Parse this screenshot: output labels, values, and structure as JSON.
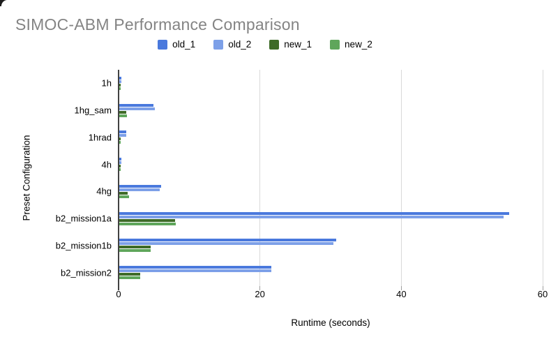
{
  "title": "SIMOC-ABM Performance Comparison",
  "axis": {
    "xlabel": "Runtime (seconds)",
    "ylabel": "Preset Configuration"
  },
  "colors": {
    "old_1": "#4a79dd",
    "old_2": "#7da0e8",
    "new_1": "#3e6b28",
    "new_2": "#5fa65b",
    "title_text": "#848484",
    "axis_line": "#424242",
    "gridline": "#d9d9d9",
    "tick": "#9e9e9e"
  },
  "chart_data": {
    "type": "bar",
    "orientation": "horizontal",
    "title": "SIMOC-ABM Performance Comparison",
    "xlabel": "Runtime (seconds)",
    "ylabel": "Preset Configuration",
    "xlim": [
      0,
      60
    ],
    "xticks": [
      0,
      20,
      40,
      60
    ],
    "grid": true,
    "legend_position": "top",
    "categories": [
      "1h",
      "1hg_sam",
      "1hrad",
      "4h",
      "4hg",
      "b2_mission1a",
      "b2_mission1b",
      "b2_mission2"
    ],
    "series": [
      {
        "name": "old_1",
        "color": "#4a79dd",
        "values": [
          0.3,
          4.8,
          1.0,
          0.3,
          5.9,
          55.2,
          30.7,
          21.5
        ]
      },
      {
        "name": "old_2",
        "color": "#7da0e8",
        "values": [
          0.3,
          5.0,
          1.0,
          0.3,
          5.7,
          54.4,
          30.3,
          21.5
        ]
      },
      {
        "name": "new_1",
        "color": "#3e6b28",
        "values": [
          0.1,
          1.0,
          0.2,
          0.1,
          1.2,
          7.9,
          4.4,
          3.0
        ]
      },
      {
        "name": "new_2",
        "color": "#5fa65b",
        "values": [
          0.1,
          1.1,
          0.2,
          0.1,
          1.4,
          8.0,
          4.4,
          3.0
        ]
      }
    ]
  }
}
